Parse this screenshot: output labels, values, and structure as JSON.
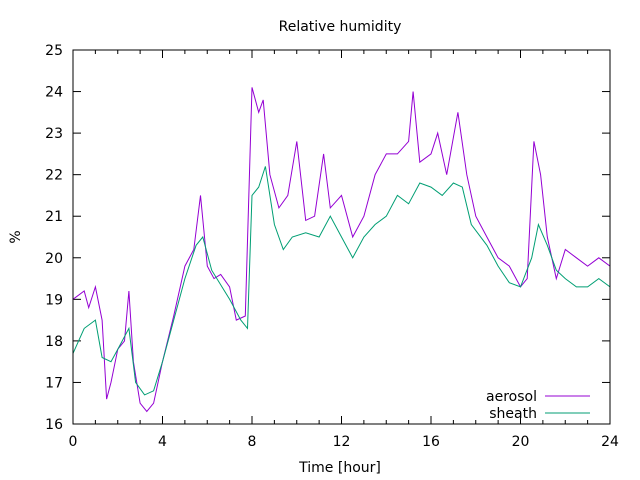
{
  "chart_data": {
    "type": "line",
    "title": "Relative humidity",
    "xlabel": "Time [hour]",
    "ylabel": "%",
    "xlim": [
      0,
      24
    ],
    "ylim": [
      16,
      25
    ],
    "xticks": [
      0,
      4,
      8,
      12,
      16,
      20,
      24
    ],
    "xminor_step": 1,
    "yticks": [
      16,
      17,
      18,
      19,
      20,
      21,
      22,
      23,
      24,
      25
    ],
    "grid": false,
    "legend_position": "bottom-right",
    "series": [
      {
        "name": "aerosol",
        "color": "#9400d3",
        "x": [
          0,
          0.5,
          0.7,
          1.0,
          1.3,
          1.5,
          1.7,
          2.0,
          2.3,
          2.5,
          2.7,
          3.0,
          3.3,
          3.6,
          4.0,
          4.5,
          5.0,
          5.4,
          5.7,
          6.0,
          6.3,
          6.6,
          7.0,
          7.3,
          7.7,
          8.0,
          8.3,
          8.5,
          8.8,
          9.2,
          9.6,
          10.0,
          10.4,
          10.8,
          11.2,
          11.5,
          12.0,
          12.5,
          13.0,
          13.5,
          14.0,
          14.5,
          15.0,
          15.2,
          15.5,
          16.0,
          16.3,
          16.7,
          17.2,
          17.6,
          18.0,
          18.5,
          19.0,
          19.5,
          20.0,
          20.3,
          20.6,
          20.9,
          21.2,
          21.6,
          22.0,
          22.5,
          23.0,
          23.5,
          24.0
        ],
        "y": [
          19.0,
          19.2,
          18.8,
          19.3,
          18.5,
          16.6,
          17.0,
          17.8,
          18.0,
          19.2,
          17.5,
          16.5,
          16.3,
          16.5,
          17.5,
          18.6,
          19.8,
          20.2,
          21.5,
          19.8,
          19.5,
          19.6,
          19.3,
          18.5,
          18.6,
          24.1,
          23.5,
          23.8,
          22.0,
          21.2,
          21.5,
          22.8,
          20.9,
          21.0,
          22.5,
          21.2,
          21.5,
          20.5,
          21.0,
          22.0,
          22.5,
          22.5,
          22.8,
          24.0,
          22.3,
          22.5,
          23.0,
          22.0,
          23.5,
          22.0,
          21.0,
          20.5,
          20.0,
          19.8,
          19.3,
          19.5,
          22.8,
          22.0,
          20.5,
          19.5,
          20.2,
          20.0,
          19.8,
          20.0,
          19.8
        ]
      },
      {
        "name": "sheath",
        "color": "#009e73",
        "x": [
          0,
          0.5,
          1.0,
          1.3,
          1.7,
          2.0,
          2.5,
          2.8,
          3.2,
          3.6,
          4.0,
          4.5,
          5.0,
          5.5,
          5.8,
          6.2,
          7.0,
          7.5,
          7.8,
          8.0,
          8.3,
          8.6,
          9.0,
          9.4,
          9.8,
          10.4,
          11.0,
          11.5,
          12.0,
          12.5,
          13.0,
          13.5,
          14.0,
          14.5,
          15.0,
          15.5,
          16.0,
          16.5,
          17.0,
          17.4,
          17.8,
          18.5,
          19.0,
          19.5,
          20.0,
          20.5,
          20.8,
          21.2,
          21.6,
          22.0,
          22.5,
          23.0,
          23.5,
          24.0
        ],
        "y": [
          17.7,
          18.3,
          18.5,
          17.6,
          17.5,
          17.8,
          18.3,
          17.0,
          16.7,
          16.8,
          17.5,
          18.5,
          19.5,
          20.3,
          20.5,
          19.7,
          19.0,
          18.5,
          18.3,
          21.5,
          21.7,
          22.2,
          20.8,
          20.2,
          20.5,
          20.6,
          20.5,
          21.0,
          20.5,
          20.0,
          20.5,
          20.8,
          21.0,
          21.5,
          21.3,
          21.8,
          21.7,
          21.5,
          21.8,
          21.7,
          20.8,
          20.3,
          19.8,
          19.4,
          19.3,
          20.0,
          20.8,
          20.3,
          19.7,
          19.5,
          19.3,
          19.3,
          19.5,
          19.3
        ]
      }
    ]
  }
}
